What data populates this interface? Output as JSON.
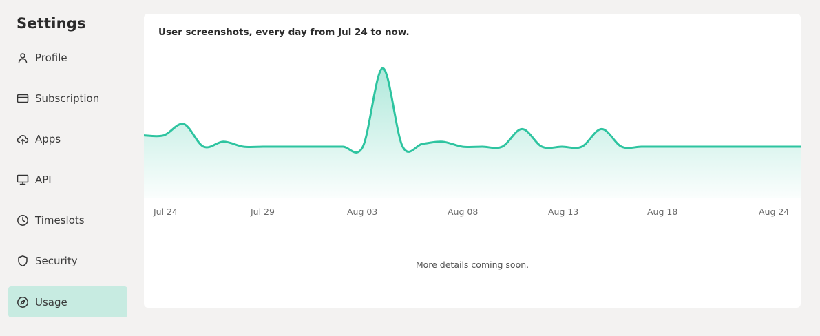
{
  "sidebar": {
    "title": "Settings",
    "items": [
      {
        "label": "Profile",
        "icon": "user-icon",
        "active": false
      },
      {
        "label": "Subscription",
        "icon": "card-icon",
        "active": false
      },
      {
        "label": "Apps",
        "icon": "cloud-upload-icon",
        "active": false
      },
      {
        "label": "API",
        "icon": "monitor-icon",
        "active": false
      },
      {
        "label": "Timeslots",
        "icon": "clock-icon",
        "active": false
      },
      {
        "label": "Security",
        "icon": "shield-icon",
        "active": false
      },
      {
        "label": "Usage",
        "icon": "compass-icon",
        "active": true
      }
    ]
  },
  "main": {
    "title": "User screenshots, every day from Jul 24 to now.",
    "footer_note": "More details coming soon."
  },
  "colors": {
    "accent": "#2ec4a0",
    "active_nav_bg": "#c7ebe1",
    "page_bg": "#f3f2f1"
  },
  "chart_data": {
    "type": "area",
    "title": "User screenshots, every day from Jul 24 to now.",
    "xlabel": "",
    "ylabel": "",
    "grid": false,
    "x_tick_labels": [
      "Jul 24",
      "Jul 29",
      "Aug 03",
      "Aug 08",
      "Aug 13",
      "Aug 18",
      "Aug 24"
    ],
    "x": [
      "Jul 23",
      "Jul 24",
      "Jul 25",
      "Jul 26",
      "Jul 27",
      "Jul 28",
      "Jul 29",
      "Jul 30",
      "Jul 31",
      "Aug 01",
      "Aug 02",
      "Aug 03",
      "Aug 04",
      "Aug 05",
      "Aug 06",
      "Aug 07",
      "Aug 08",
      "Aug 09",
      "Aug 10",
      "Aug 11",
      "Aug 12",
      "Aug 13",
      "Aug 14",
      "Aug 15",
      "Aug 16",
      "Aug 17",
      "Aug 18",
      "Aug 19",
      "Aug 20",
      "Aug 21",
      "Aug 22",
      "Aug 23",
      "Aug 24",
      "Aug 25"
    ],
    "values": [
      16,
      16,
      32,
      0,
      7,
      0,
      0,
      0,
      0,
      0,
      0,
      0,
      111,
      0,
      4,
      7,
      0,
      0,
      0,
      25,
      0,
      0,
      0,
      25,
      0,
      0,
      0,
      0,
      0,
      0,
      0,
      0,
      0,
      0
    ],
    "ylim": [
      0,
      115
    ]
  }
}
